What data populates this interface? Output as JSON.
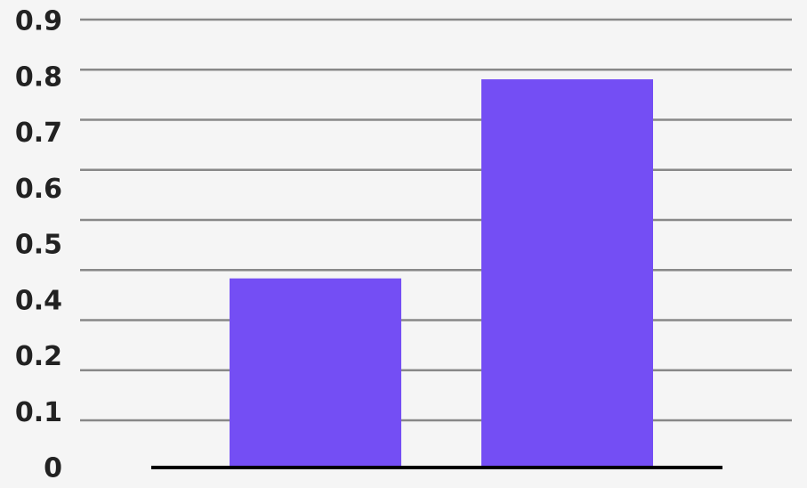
{
  "chart_data": {
    "type": "bar",
    "title": "",
    "xlabel": "",
    "ylabel": "",
    "categories": [
      "",
      ""
    ],
    "values": [
      0.38,
      0.78
    ],
    "ylim": [
      0,
      0.9
    ],
    "y_tick_labels": [
      "0.9",
      "0.8",
      "0.7",
      "0.6",
      "0.5",
      "0.4",
      "0.2",
      "0.1",
      "0"
    ],
    "grid": true,
    "bar_color": "#744ef4",
    "grid_color": "#888888",
    "baseline_color": "#000000"
  }
}
